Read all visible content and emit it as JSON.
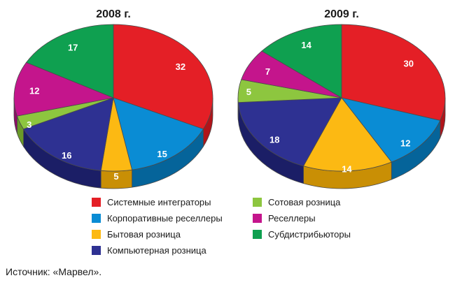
{
  "chart_data": {
    "type": "pie",
    "categories": [
      "Системные интеграторы",
      "Корпоративные реселлеры",
      "Бытовая розница",
      "Компьютерная розница",
      "Сотовая розница",
      "Реселлеры",
      "Субдистрибьюторы"
    ],
    "colors": [
      "#e41f26",
      "#0a8cd4",
      "#fcb913",
      "#2e3192",
      "#8dc63f",
      "#c4158c",
      "#0fa050"
    ],
    "sideColors": [
      "#b0141a",
      "#05649a",
      "#c98f05",
      "#1b1e66",
      "#6a9a28",
      "#8e0c66",
      "#077536"
    ],
    "series": [
      {
        "title": "2008 г.",
        "values": [
          32,
          15,
          5,
          16,
          3,
          12,
          17
        ]
      },
      {
        "title": "2009 г.",
        "values": [
          30,
          12,
          14,
          18,
          5,
          7,
          14
        ]
      }
    ],
    "legend_position": "bottom"
  },
  "source": "Источник: «Марвел»."
}
